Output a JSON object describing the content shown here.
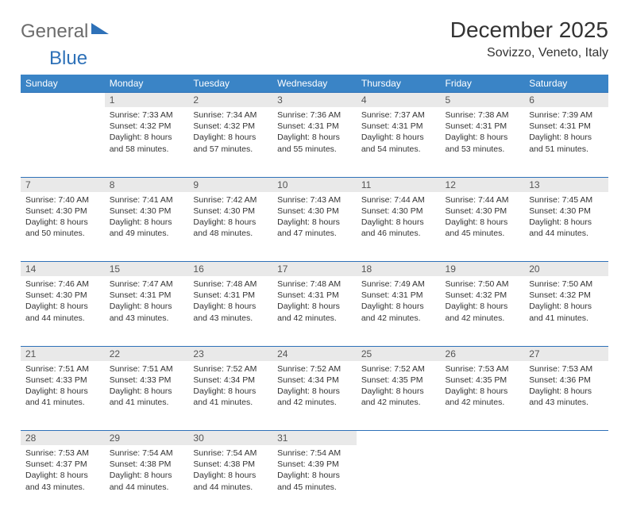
{
  "logo": {
    "word1": "General",
    "word2": "Blue"
  },
  "title": "December 2025",
  "location": "Sovizzo, Veneto, Italy",
  "colors": {
    "header_bg": "#3a84c6",
    "header_text": "#ffffff",
    "rule": "#2e71b8",
    "daynum_bg": "#e9e9e9",
    "logo_gray": "#6c6c6c",
    "logo_blue": "#2e71b8",
    "body_text": "#333333",
    "page_bg": "#ffffff"
  },
  "day_headers": [
    "Sunday",
    "Monday",
    "Tuesday",
    "Wednesday",
    "Thursday",
    "Friday",
    "Saturday"
  ],
  "weeks": [
    [
      null,
      {
        "n": "1",
        "sr": "Sunrise: 7:33 AM",
        "ss": "Sunset: 4:32 PM",
        "d1": "Daylight: 8 hours",
        "d2": "and 58 minutes."
      },
      {
        "n": "2",
        "sr": "Sunrise: 7:34 AM",
        "ss": "Sunset: 4:32 PM",
        "d1": "Daylight: 8 hours",
        "d2": "and 57 minutes."
      },
      {
        "n": "3",
        "sr": "Sunrise: 7:36 AM",
        "ss": "Sunset: 4:31 PM",
        "d1": "Daylight: 8 hours",
        "d2": "and 55 minutes."
      },
      {
        "n": "4",
        "sr": "Sunrise: 7:37 AM",
        "ss": "Sunset: 4:31 PM",
        "d1": "Daylight: 8 hours",
        "d2": "and 54 minutes."
      },
      {
        "n": "5",
        "sr": "Sunrise: 7:38 AM",
        "ss": "Sunset: 4:31 PM",
        "d1": "Daylight: 8 hours",
        "d2": "and 53 minutes."
      },
      {
        "n": "6",
        "sr": "Sunrise: 7:39 AM",
        "ss": "Sunset: 4:31 PM",
        "d1": "Daylight: 8 hours",
        "d2": "and 51 minutes."
      }
    ],
    [
      {
        "n": "7",
        "sr": "Sunrise: 7:40 AM",
        "ss": "Sunset: 4:30 PM",
        "d1": "Daylight: 8 hours",
        "d2": "and 50 minutes."
      },
      {
        "n": "8",
        "sr": "Sunrise: 7:41 AM",
        "ss": "Sunset: 4:30 PM",
        "d1": "Daylight: 8 hours",
        "d2": "and 49 minutes."
      },
      {
        "n": "9",
        "sr": "Sunrise: 7:42 AM",
        "ss": "Sunset: 4:30 PM",
        "d1": "Daylight: 8 hours",
        "d2": "and 48 minutes."
      },
      {
        "n": "10",
        "sr": "Sunrise: 7:43 AM",
        "ss": "Sunset: 4:30 PM",
        "d1": "Daylight: 8 hours",
        "d2": "and 47 minutes."
      },
      {
        "n": "11",
        "sr": "Sunrise: 7:44 AM",
        "ss": "Sunset: 4:30 PM",
        "d1": "Daylight: 8 hours",
        "d2": "and 46 minutes."
      },
      {
        "n": "12",
        "sr": "Sunrise: 7:44 AM",
        "ss": "Sunset: 4:30 PM",
        "d1": "Daylight: 8 hours",
        "d2": "and 45 minutes."
      },
      {
        "n": "13",
        "sr": "Sunrise: 7:45 AM",
        "ss": "Sunset: 4:30 PM",
        "d1": "Daylight: 8 hours",
        "d2": "and 44 minutes."
      }
    ],
    [
      {
        "n": "14",
        "sr": "Sunrise: 7:46 AM",
        "ss": "Sunset: 4:30 PM",
        "d1": "Daylight: 8 hours",
        "d2": "and 44 minutes."
      },
      {
        "n": "15",
        "sr": "Sunrise: 7:47 AM",
        "ss": "Sunset: 4:31 PM",
        "d1": "Daylight: 8 hours",
        "d2": "and 43 minutes."
      },
      {
        "n": "16",
        "sr": "Sunrise: 7:48 AM",
        "ss": "Sunset: 4:31 PM",
        "d1": "Daylight: 8 hours",
        "d2": "and 43 minutes."
      },
      {
        "n": "17",
        "sr": "Sunrise: 7:48 AM",
        "ss": "Sunset: 4:31 PM",
        "d1": "Daylight: 8 hours",
        "d2": "and 42 minutes."
      },
      {
        "n": "18",
        "sr": "Sunrise: 7:49 AM",
        "ss": "Sunset: 4:31 PM",
        "d1": "Daylight: 8 hours",
        "d2": "and 42 minutes."
      },
      {
        "n": "19",
        "sr": "Sunrise: 7:50 AM",
        "ss": "Sunset: 4:32 PM",
        "d1": "Daylight: 8 hours",
        "d2": "and 42 minutes."
      },
      {
        "n": "20",
        "sr": "Sunrise: 7:50 AM",
        "ss": "Sunset: 4:32 PM",
        "d1": "Daylight: 8 hours",
        "d2": "and 41 minutes."
      }
    ],
    [
      {
        "n": "21",
        "sr": "Sunrise: 7:51 AM",
        "ss": "Sunset: 4:33 PM",
        "d1": "Daylight: 8 hours",
        "d2": "and 41 minutes."
      },
      {
        "n": "22",
        "sr": "Sunrise: 7:51 AM",
        "ss": "Sunset: 4:33 PM",
        "d1": "Daylight: 8 hours",
        "d2": "and 41 minutes."
      },
      {
        "n": "23",
        "sr": "Sunrise: 7:52 AM",
        "ss": "Sunset: 4:34 PM",
        "d1": "Daylight: 8 hours",
        "d2": "and 41 minutes."
      },
      {
        "n": "24",
        "sr": "Sunrise: 7:52 AM",
        "ss": "Sunset: 4:34 PM",
        "d1": "Daylight: 8 hours",
        "d2": "and 42 minutes."
      },
      {
        "n": "25",
        "sr": "Sunrise: 7:52 AM",
        "ss": "Sunset: 4:35 PM",
        "d1": "Daylight: 8 hours",
        "d2": "and 42 minutes."
      },
      {
        "n": "26",
        "sr": "Sunrise: 7:53 AM",
        "ss": "Sunset: 4:35 PM",
        "d1": "Daylight: 8 hours",
        "d2": "and 42 minutes."
      },
      {
        "n": "27",
        "sr": "Sunrise: 7:53 AM",
        "ss": "Sunset: 4:36 PM",
        "d1": "Daylight: 8 hours",
        "d2": "and 43 minutes."
      }
    ],
    [
      {
        "n": "28",
        "sr": "Sunrise: 7:53 AM",
        "ss": "Sunset: 4:37 PM",
        "d1": "Daylight: 8 hours",
        "d2": "and 43 minutes."
      },
      {
        "n": "29",
        "sr": "Sunrise: 7:54 AM",
        "ss": "Sunset: 4:38 PM",
        "d1": "Daylight: 8 hours",
        "d2": "and 44 minutes."
      },
      {
        "n": "30",
        "sr": "Sunrise: 7:54 AM",
        "ss": "Sunset: 4:38 PM",
        "d1": "Daylight: 8 hours",
        "d2": "and 44 minutes."
      },
      {
        "n": "31",
        "sr": "Sunrise: 7:54 AM",
        "ss": "Sunset: 4:39 PM",
        "d1": "Daylight: 8 hours",
        "d2": "and 45 minutes."
      },
      null,
      null,
      null
    ]
  ]
}
